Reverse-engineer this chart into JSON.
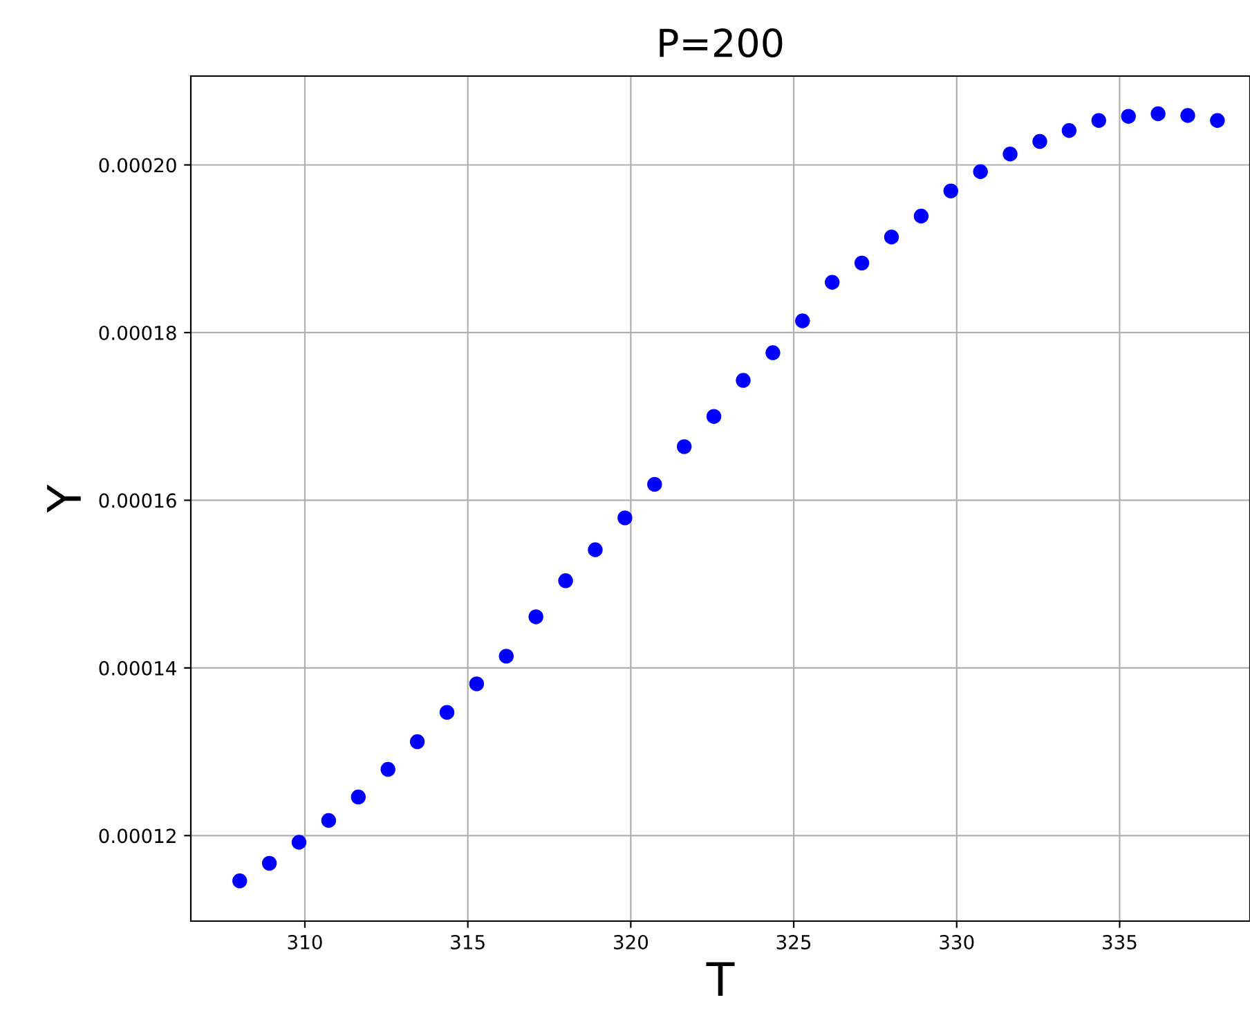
{
  "chart_data": {
    "type": "scatter",
    "title": "P=200",
    "xlabel": "T",
    "ylabel": "Y",
    "x": [
      308.0,
      308.91,
      309.82,
      310.73,
      311.64,
      312.55,
      313.45,
      314.36,
      315.27,
      316.18,
      317.09,
      318.0,
      318.91,
      319.82,
      320.73,
      321.64,
      322.55,
      323.45,
      324.36,
      325.27,
      326.18,
      327.09,
      328.0,
      328.91,
      329.82,
      330.73,
      331.64,
      332.55,
      333.45,
      334.36,
      335.27,
      336.18,
      337.09,
      338.0
    ],
    "series": [
      {
        "color": "#0000ff",
        "values": [
          0.0001146,
          0.0001167,
          0.0001192,
          0.0001218,
          0.0001246,
          0.0001279,
          0.0001312,
          0.0001347,
          0.0001381,
          0.0001414,
          0.0001461,
          0.0001504,
          0.0001541,
          0.0001579,
          0.0001619,
          0.0001664,
          0.00017,
          0.0001743,
          0.0001776,
          0.0001814,
          0.000186,
          0.0001883,
          0.0001914,
          0.0001939,
          0.0001969,
          0.0001992,
          0.0002013,
          0.0002028,
          0.0002041,
          0.0002053,
          0.0002058,
          0.0002061,
          0.0002059,
          0.0002053
        ]
      }
    ],
    "marker": "circle",
    "grid": true,
    "xlim": [
      306.5,
      339
    ],
    "xticks": [
      310,
      315,
      320,
      325,
      330,
      335
    ],
    "ylim": [
      0.0001098,
      0.0002106
    ],
    "yticks": [
      {
        "value": 0.00012,
        "label": "0.00012"
      },
      {
        "value": 0.00014,
        "label": "0.00014"
      },
      {
        "value": 0.00016,
        "label": "0.00016"
      },
      {
        "value": 0.00018,
        "label": "0.00018"
      },
      {
        "value": 0.0002,
        "label": "0.00020"
      }
    ]
  }
}
